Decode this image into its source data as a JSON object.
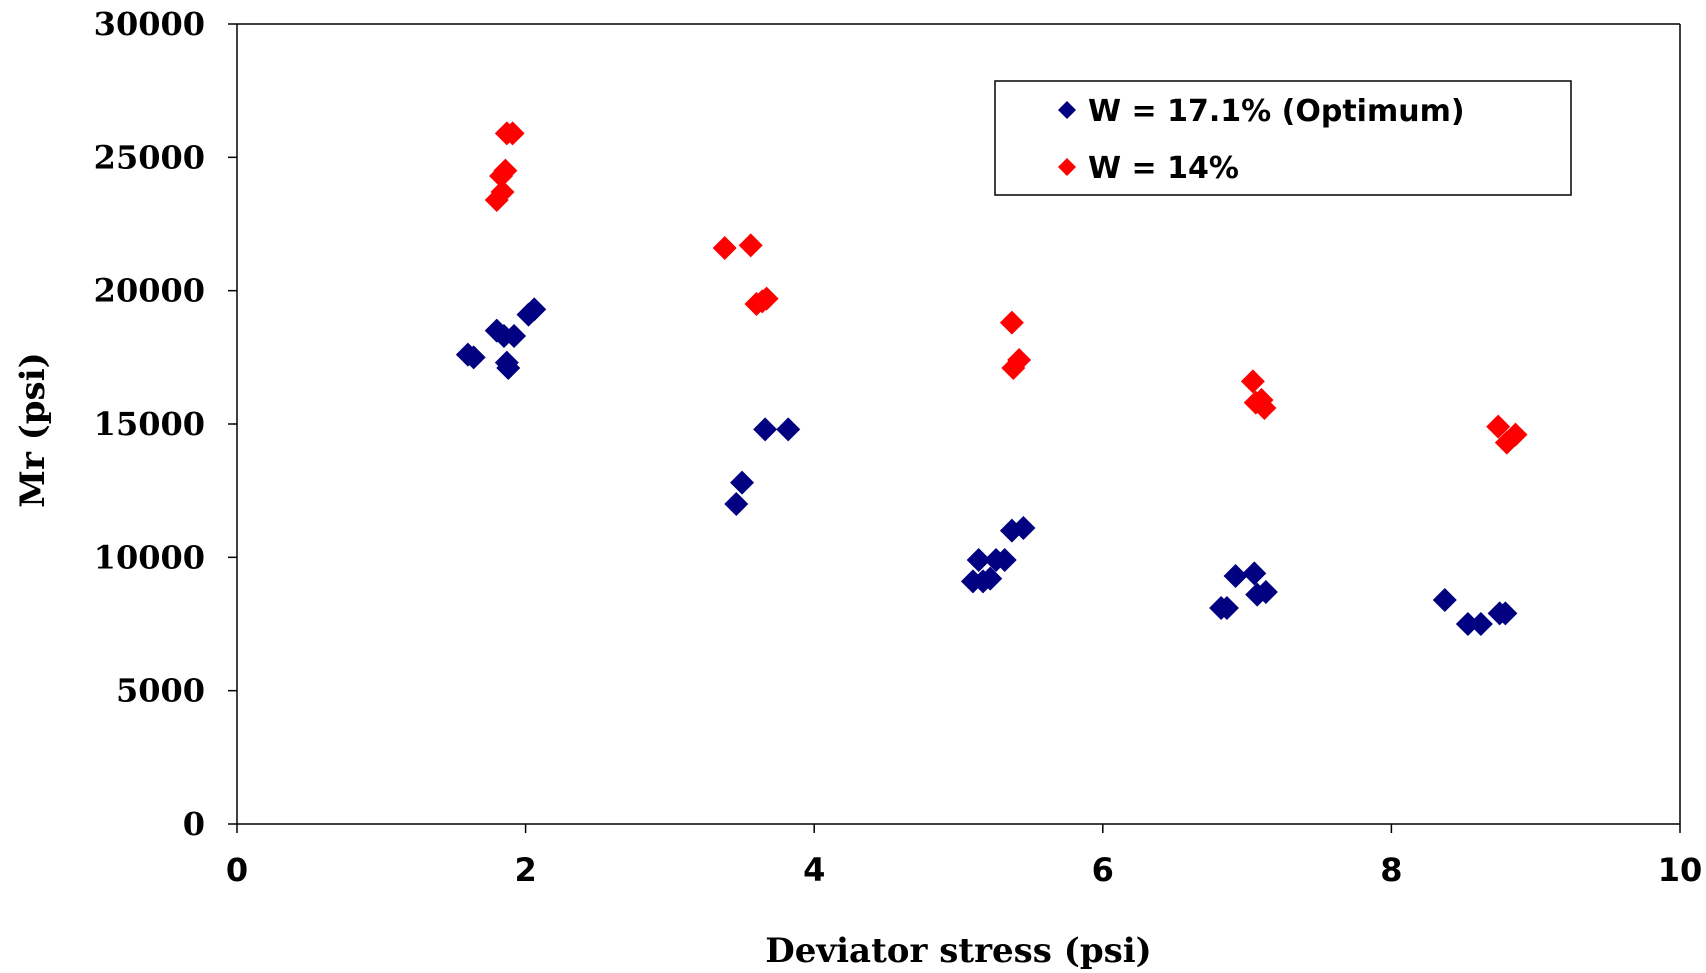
{
  "chart_data": {
    "type": "scatter",
    "title": "",
    "xlabel": "Deviator stress (psi)",
    "ylabel": "Mr (psi)",
    "xlim": [
      0,
      10
    ],
    "ylim": [
      0,
      30000
    ],
    "xticks": [
      0,
      2,
      4,
      6,
      8,
      10
    ],
    "yticks": [
      0,
      5000,
      10000,
      15000,
      20000,
      25000,
      30000
    ],
    "grid": false,
    "legend_position": "top-right",
    "series": [
      {
        "name": "W = 17.1% (Optimum)",
        "color": "#000080",
        "marker": "diamond",
        "points": [
          [
            1.6,
            17600
          ],
          [
            1.64,
            17500
          ],
          [
            1.8,
            18500
          ],
          [
            1.85,
            18300
          ],
          [
            1.92,
            18300
          ],
          [
            1.88,
            17100
          ],
          [
            1.87,
            17300
          ],
          [
            2.02,
            19100
          ],
          [
            2.06,
            19300
          ],
          [
            3.46,
            12000
          ],
          [
            3.5,
            12800
          ],
          [
            3.66,
            14800
          ],
          [
            3.82,
            14800
          ],
          [
            5.1,
            9100
          ],
          [
            5.17,
            9100
          ],
          [
            5.22,
            9200
          ],
          [
            5.14,
            9900
          ],
          [
            5.26,
            9900
          ],
          [
            5.32,
            9900
          ],
          [
            5.37,
            11000
          ],
          [
            5.45,
            11100
          ],
          [
            6.82,
            8100
          ],
          [
            6.86,
            8100
          ],
          [
            6.92,
            9300
          ],
          [
            7.05,
            9400
          ],
          [
            7.07,
            8600
          ],
          [
            7.13,
            8700
          ],
          [
            8.37,
            8400
          ],
          [
            8.53,
            7500
          ],
          [
            8.62,
            7500
          ],
          [
            8.75,
            7900
          ],
          [
            8.79,
            7900
          ]
        ]
      },
      {
        "name": "W = 14%",
        "color": "#ff0000",
        "marker": "diamond",
        "points": [
          [
            1.8,
            23400
          ],
          [
            1.84,
            23700
          ],
          [
            1.83,
            24300
          ],
          [
            1.86,
            24500
          ],
          [
            1.87,
            25900
          ],
          [
            1.91,
            25900
          ],
          [
            3.38,
            21600
          ],
          [
            3.56,
            21700
          ],
          [
            3.6,
            19500
          ],
          [
            3.64,
            19600
          ],
          [
            3.67,
            19700
          ],
          [
            5.37,
            18800
          ],
          [
            5.38,
            17100
          ],
          [
            5.42,
            17400
          ],
          [
            7.04,
            16600
          ],
          [
            7.06,
            15800
          ],
          [
            7.1,
            15900
          ],
          [
            7.12,
            15600
          ],
          [
            8.74,
            14900
          ],
          [
            8.8,
            14300
          ],
          [
            8.86,
            14600
          ]
        ]
      }
    ]
  }
}
